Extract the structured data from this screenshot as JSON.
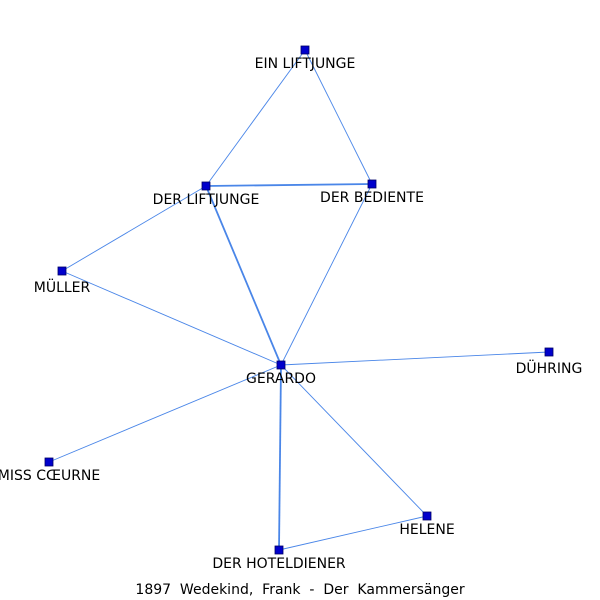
{
  "caption": "1897  Wedekind,  Frank  -  Der  Kammersänger",
  "colors": {
    "edge": "#4a86e8",
    "node": "#0000cc",
    "label": "#000000"
  },
  "nodes": [
    {
      "id": "ein-liftjunge",
      "label": "EIN LIFTJUNGE"
    },
    {
      "id": "der-liftjunge",
      "label": "DER LIFTJUNGE"
    },
    {
      "id": "der-bediente",
      "label": "DER BEDIENTE"
    },
    {
      "id": "mueller",
      "label": "MÜLLER"
    },
    {
      "id": "gerardo",
      "label": "GERARDO"
    },
    {
      "id": "duehring",
      "label": "DÜHRING"
    },
    {
      "id": "miss-coeurne",
      "label": "MISS CŒURNE"
    },
    {
      "id": "helene",
      "label": "HELENE"
    },
    {
      "id": "der-hoteldiener",
      "label": "DER HOTELDIENER"
    }
  ],
  "edges": [
    {
      "source": "ein-liftjunge",
      "target": "der-liftjunge",
      "weight": 1
    },
    {
      "source": "ein-liftjunge",
      "target": "der-bediente",
      "weight": 1
    },
    {
      "source": "der-liftjunge",
      "target": "der-bediente",
      "weight": 2
    },
    {
      "source": "der-liftjunge",
      "target": "mueller",
      "weight": 1
    },
    {
      "source": "der-liftjunge",
      "target": "gerardo",
      "weight": 2
    },
    {
      "source": "der-bediente",
      "target": "gerardo",
      "weight": 1
    },
    {
      "source": "mueller",
      "target": "gerardo",
      "weight": 1
    },
    {
      "source": "gerardo",
      "target": "duehring",
      "weight": 1
    },
    {
      "source": "gerardo",
      "target": "miss-coeurne",
      "weight": 1
    },
    {
      "source": "gerardo",
      "target": "helene",
      "weight": 1
    },
    {
      "source": "gerardo",
      "target": "der-hoteldiener",
      "weight": 2
    },
    {
      "source": "helene",
      "target": "der-hoteldiener",
      "weight": 1
    }
  ]
}
